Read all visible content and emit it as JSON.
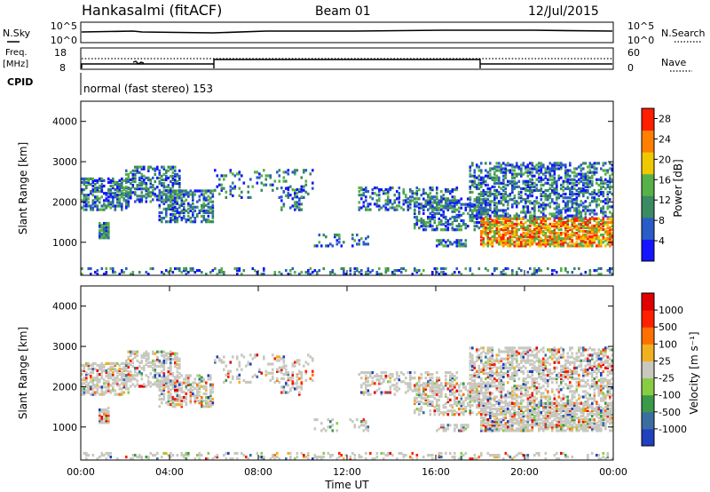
{
  "header": {
    "station": "Hankasalmi (fitACF)",
    "beam": "Beam 01",
    "date": "12/Jul/2015"
  },
  "status_panel": {
    "nsky_label": "N.Sky",
    "nsearch_label": "N.Search",
    "freq_label_line1": "Freq.",
    "freq_label_line2": "[MHz]",
    "nave_label": "Nave",
    "cpid_label": "CPID",
    "cpid_text": "normal (fast stereo) 153",
    "noise_left_ticks": [
      "10^5",
      "10^0"
    ],
    "noise_right_ticks": [
      "10^5",
      "10^0"
    ],
    "freq_ticks": [
      "18",
      "8"
    ],
    "nave_ticks": [
      "60",
      "0"
    ]
  },
  "chart_data": [
    {
      "type": "heatmap",
      "quantity": "Power",
      "ylabel": "Slant Range [km]",
      "xlim": [
        0,
        24
      ],
      "ylim": [
        180,
        4500
      ],
      "yticks": [
        1000,
        2000,
        3000,
        4000
      ],
      "ytick_labels": [
        "1000",
        "2000",
        "3000",
        "4000"
      ],
      "colorbar": {
        "label": "Power [dB]",
        "ticks": [
          4,
          8,
          12,
          16,
          20,
          24,
          28
        ],
        "tick_labels": [
          "4",
          "8",
          "12",
          "16",
          "20",
          "24",
          "28"
        ],
        "range": [
          0,
          30
        ],
        "colors": [
          "#1414ff",
          "#2a5cc8",
          "#3a8a62",
          "#58b048",
          "#f0c800",
          "#ff8000",
          "#ff1e00"
        ]
      }
    },
    {
      "type": "heatmap",
      "quantity": "Velocity",
      "ylabel": "Slant Range [km]",
      "xlabel": "Time UT",
      "xlim": [
        0,
        24
      ],
      "ylim": [
        180,
        4500
      ],
      "yticks": [
        1000,
        2000,
        3000,
        4000
      ],
      "ytick_labels": [
        "1000",
        "2000",
        "3000",
        "4000"
      ],
      "xticks": [
        0,
        4,
        8,
        12,
        16,
        20,
        24
      ],
      "xtick_labels": [
        "00:00",
        "04:00",
        "08:00",
        "12:00",
        "16:00",
        "20:00",
        "00:00"
      ],
      "colorbar": {
        "label": "Velocity [m s⁻¹]",
        "tick_labels": [
          "1000",
          "500",
          "100",
          "25",
          "-25",
          "-100",
          "-500",
          "-1000"
        ],
        "colors": [
          "#2040c0",
          "#3a6ea0",
          "#3a9a4a",
          "#88cc44",
          "#c8c8c0",
          "#f0b020",
          "#ff7000",
          "#ff2000",
          "#e00000"
        ]
      }
    }
  ]
}
